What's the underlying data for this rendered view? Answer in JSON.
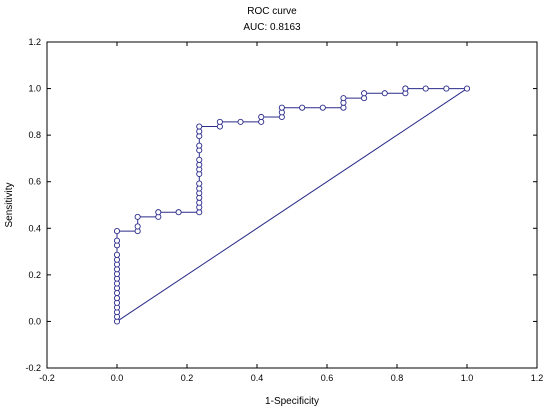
{
  "chart_data": {
    "type": "line",
    "title": "ROC curve",
    "subtitle": "AUC:  0.8163",
    "xlabel": "1-Specificity",
    "ylabel": "Sensitivity",
    "xlim": [
      -0.2,
      1.2
    ],
    "ylim": [
      -0.2,
      1.2
    ],
    "x_ticks": [
      "-0.2",
      "0.0",
      "0.2",
      "0.4",
      "0.6",
      "0.8",
      "1.0",
      "1.2"
    ],
    "y_ticks": [
      "1.2",
      "1.0",
      "0.8",
      "0.6",
      "0.4",
      "0.2",
      "0.0",
      "-0.2"
    ],
    "grid": false,
    "colors": {
      "curve": "#2b2b8c",
      "diagonal": "#2b2b8c",
      "axis": "#000000"
    },
    "diagonal": [
      [
        0,
        0
      ],
      [
        1,
        1
      ]
    ],
    "series": [
      {
        "values_x": [
          0.0,
          0.0,
          0.0,
          0.0,
          0.0,
          0.0,
          0.0,
          0.0,
          0.0,
          0.0,
          0.0,
          0.0,
          0.0,
          0.0,
          0.0,
          0.0,
          0.0,
          0.0,
          0.059,
          0.059,
          0.059,
          0.118,
          0.118,
          0.176,
          0.235,
          0.235,
          0.235,
          0.235,
          0.235,
          0.235,
          0.235,
          0.235,
          0.235,
          0.235,
          0.235,
          0.235,
          0.235,
          0.235,
          0.235,
          0.235,
          0.294,
          0.294,
          0.353,
          0.412,
          0.412,
          0.471,
          0.471,
          0.471,
          0.529,
          0.588,
          0.647,
          0.647,
          0.647,
          0.706,
          0.706,
          0.765,
          0.824,
          0.824,
          0.824,
          0.882,
          0.941,
          1.0
        ],
        "values_y": [
          0.0,
          0.02,
          0.04,
          0.06,
          0.08,
          0.1,
          0.122,
          0.143,
          0.163,
          0.184,
          0.204,
          0.224,
          0.245,
          0.265,
          0.286,
          0.327,
          0.347,
          0.388,
          0.388,
          0.408,
          0.449,
          0.449,
          0.469,
          0.469,
          0.469,
          0.49,
          0.51,
          0.531,
          0.551,
          0.571,
          0.592,
          0.633,
          0.653,
          0.673,
          0.694,
          0.735,
          0.755,
          0.796,
          0.816,
          0.837,
          0.837,
          0.857,
          0.857,
          0.857,
          0.878,
          0.878,
          0.898,
          0.918,
          0.918,
          0.918,
          0.918,
          0.939,
          0.959,
          0.959,
          0.98,
          0.98,
          0.98,
          1.0,
          1.0,
          1.0,
          1.0,
          1.0
        ]
      }
    ]
  }
}
